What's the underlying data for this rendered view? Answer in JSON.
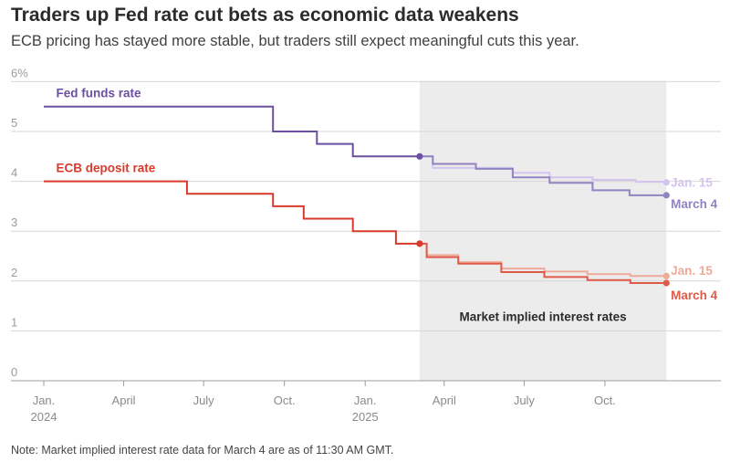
{
  "header": {
    "title": "Traders up Fed rate cut bets as economic data weakens",
    "subtitle": "ECB pricing has stayed more stable, but traders still expect meaningful cuts this year."
  },
  "footer": {
    "note": "Note: Market implied interest rate data for March 4 are as of 11:30 AM GMT."
  },
  "chart_data": {
    "type": "line",
    "step": true,
    "title": "Traders up Fed rate cut bets as economic data weakens",
    "subtitle": "ECB pricing has stayed more stable, but traders still expect meaningful cuts this year.",
    "ylim": [
      0,
      6
    ],
    "y_ticks": [
      {
        "value": 0,
        "label": "0"
      },
      {
        "value": 1,
        "label": "1"
      },
      {
        "value": 2,
        "label": "2"
      },
      {
        "value": 3,
        "label": "3"
      },
      {
        "value": 4,
        "label": "4"
      },
      {
        "value": 5,
        "label": "5"
      },
      {
        "value": 6,
        "label": "6%"
      }
    ],
    "xlim": [
      "2024-01-01",
      "2025-12-31"
    ],
    "x_ticks": [
      {
        "date": "2024-01-01",
        "lines": [
          "Jan.",
          "2024"
        ]
      },
      {
        "date": "2024-04-01",
        "lines": [
          "April"
        ]
      },
      {
        "date": "2024-07-01",
        "lines": [
          "July"
        ]
      },
      {
        "date": "2024-10-01",
        "lines": [
          "Oct."
        ]
      },
      {
        "date": "2025-01-01",
        "lines": [
          "Jan.",
          "2025"
        ]
      },
      {
        "date": "2025-04-01",
        "lines": [
          "April"
        ]
      },
      {
        "date": "2025-07-01",
        "lines": [
          "July"
        ]
      },
      {
        "date": "2025-10-01",
        "lines": [
          "Oct."
        ]
      }
    ],
    "shaded_region": {
      "start": "2025-03-04",
      "end": "2025-12-10",
      "label": "Market implied interest rates"
    },
    "series": [
      {
        "name": "Fed funds rate",
        "color": "#6b4fa0",
        "points": [
          {
            "x": "2024-01-01",
            "y": 5.5
          },
          {
            "x": "2024-09-18",
            "y": 5.0
          },
          {
            "x": "2024-11-07",
            "y": 4.75
          },
          {
            "x": "2024-12-18",
            "y": 4.5
          },
          {
            "x": "2025-03-04",
            "y": 4.5
          }
        ]
      },
      {
        "name": "ECB deposit rate",
        "color": "#d93a2b",
        "points": [
          {
            "x": "2024-01-01",
            "y": 4.0
          },
          {
            "x": "2024-06-12",
            "y": 3.75
          },
          {
            "x": "2024-09-18",
            "y": 3.5
          },
          {
            "x": "2024-10-23",
            "y": 3.25
          },
          {
            "x": "2024-12-18",
            "y": 3.0
          },
          {
            "x": "2025-02-05",
            "y": 2.75
          },
          {
            "x": "2025-03-04",
            "y": 2.75
          }
        ]
      },
      {
        "name": "Jan. 15",
        "color": "#d3c4ee",
        "points": [
          {
            "x": "2025-03-04",
            "y": 4.5
          },
          {
            "x": "2025-03-19",
            "y": 4.27
          },
          {
            "x": "2025-06-18",
            "y": 4.17
          },
          {
            "x": "2025-07-30",
            "y": 4.08
          },
          {
            "x": "2025-09-17",
            "y": 4.03
          },
          {
            "x": "2025-11-05",
            "y": 3.99
          },
          {
            "x": "2025-12-10",
            "y": 3.98
          }
        ]
      },
      {
        "name": "March 4",
        "color": "#9183c2",
        "points": [
          {
            "x": "2025-03-04",
            "y": 4.5
          },
          {
            "x": "2025-03-19",
            "y": 4.35
          },
          {
            "x": "2025-05-07",
            "y": 4.25
          },
          {
            "x": "2025-06-18",
            "y": 4.08
          },
          {
            "x": "2025-07-30",
            "y": 3.97
          },
          {
            "x": "2025-09-17",
            "y": 3.82
          },
          {
            "x": "2025-10-29",
            "y": 3.72
          },
          {
            "x": "2025-12-10",
            "y": 3.72
          }
        ]
      },
      {
        "name": "Jan. 15",
        "color": "#f0aa98",
        "points": [
          {
            "x": "2025-03-04",
            "y": 2.75
          },
          {
            "x": "2025-03-12",
            "y": 2.52
          },
          {
            "x": "2025-04-17",
            "y": 2.38
          },
          {
            "x": "2025-06-05",
            "y": 2.25
          },
          {
            "x": "2025-07-24",
            "y": 2.19
          },
          {
            "x": "2025-09-11",
            "y": 2.14
          },
          {
            "x": "2025-10-30",
            "y": 2.1
          },
          {
            "x": "2025-12-10",
            "y": 2.1
          }
        ]
      },
      {
        "name": "March 4",
        "color": "#e05a49",
        "points": [
          {
            "x": "2025-03-04",
            "y": 2.75
          },
          {
            "x": "2025-03-12",
            "y": 2.48
          },
          {
            "x": "2025-04-17",
            "y": 2.35
          },
          {
            "x": "2025-06-05",
            "y": 2.18
          },
          {
            "x": "2025-07-24",
            "y": 2.08
          },
          {
            "x": "2025-09-11",
            "y": 2.02
          },
          {
            "x": "2025-10-30",
            "y": 1.96
          },
          {
            "x": "2025-12-10",
            "y": 1.96
          }
        ]
      }
    ],
    "markers": [
      {
        "x": "2025-03-04",
        "y": 4.5,
        "color": "#6b4fa0"
      },
      {
        "x": "2025-03-04",
        "y": 2.75,
        "color": "#d93a2b"
      },
      {
        "x": "2025-12-10",
        "y": 3.98,
        "color": "#d3c4ee"
      },
      {
        "x": "2025-12-10",
        "y": 3.72,
        "color": "#9183c2"
      },
      {
        "x": "2025-12-10",
        "y": 2.1,
        "color": "#f0aa98"
      },
      {
        "x": "2025-12-10",
        "y": 1.96,
        "color": "#e05a49"
      }
    ],
    "labels": [
      {
        "text": "Fed funds rate",
        "color": "#6b4fa0",
        "x": "2024-01-15",
        "y": 5.78
      },
      {
        "text": "ECB deposit rate",
        "color": "#d93a2b",
        "x": "2024-01-15",
        "y": 4.28
      },
      {
        "text": "Jan. 15",
        "color": "#d3c4ee",
        "x": "2025-12-15",
        "y": 3.98
      },
      {
        "text": "March 4",
        "color": "#9183c2",
        "x": "2025-12-15",
        "y": 3.55
      },
      {
        "text": "Jan. 15",
        "color": "#f0aa98",
        "x": "2025-12-15",
        "y": 2.22
      },
      {
        "text": "March 4",
        "color": "#e05a49",
        "x": "2025-12-15",
        "y": 1.72
      }
    ]
  }
}
